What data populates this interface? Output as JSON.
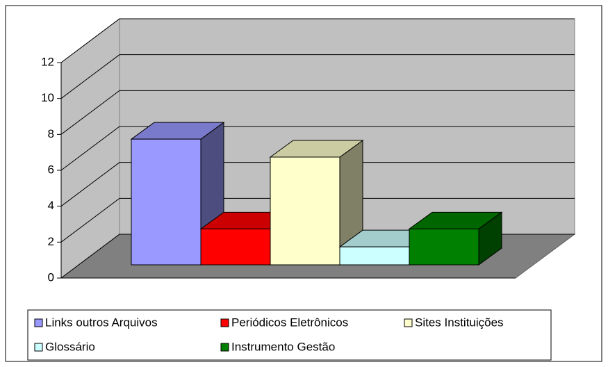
{
  "chart_data": {
    "type": "bar3d",
    "series": [
      {
        "name": "Links outros Arquivos",
        "color": "#9999ff",
        "values": [
          7
        ]
      },
      {
        "name": "Periódicos Eletrônicos",
        "color": "#ff0000",
        "values": [
          2
        ]
      },
      {
        "name": "Sites Instituições",
        "color": "#ffffcc",
        "values": [
          6
        ]
      },
      {
        "name": "Glossário",
        "color": "#ccffff",
        "values": [
          1
        ]
      },
      {
        "name": "Instrumento Gestão",
        "color": "#008000",
        "values": [
          2
        ]
      }
    ],
    "ylim": [
      0,
      12
    ],
    "yticks": [
      0,
      2,
      4,
      6,
      8,
      10,
      12
    ],
    "grid": true,
    "legend": "bottom"
  }
}
